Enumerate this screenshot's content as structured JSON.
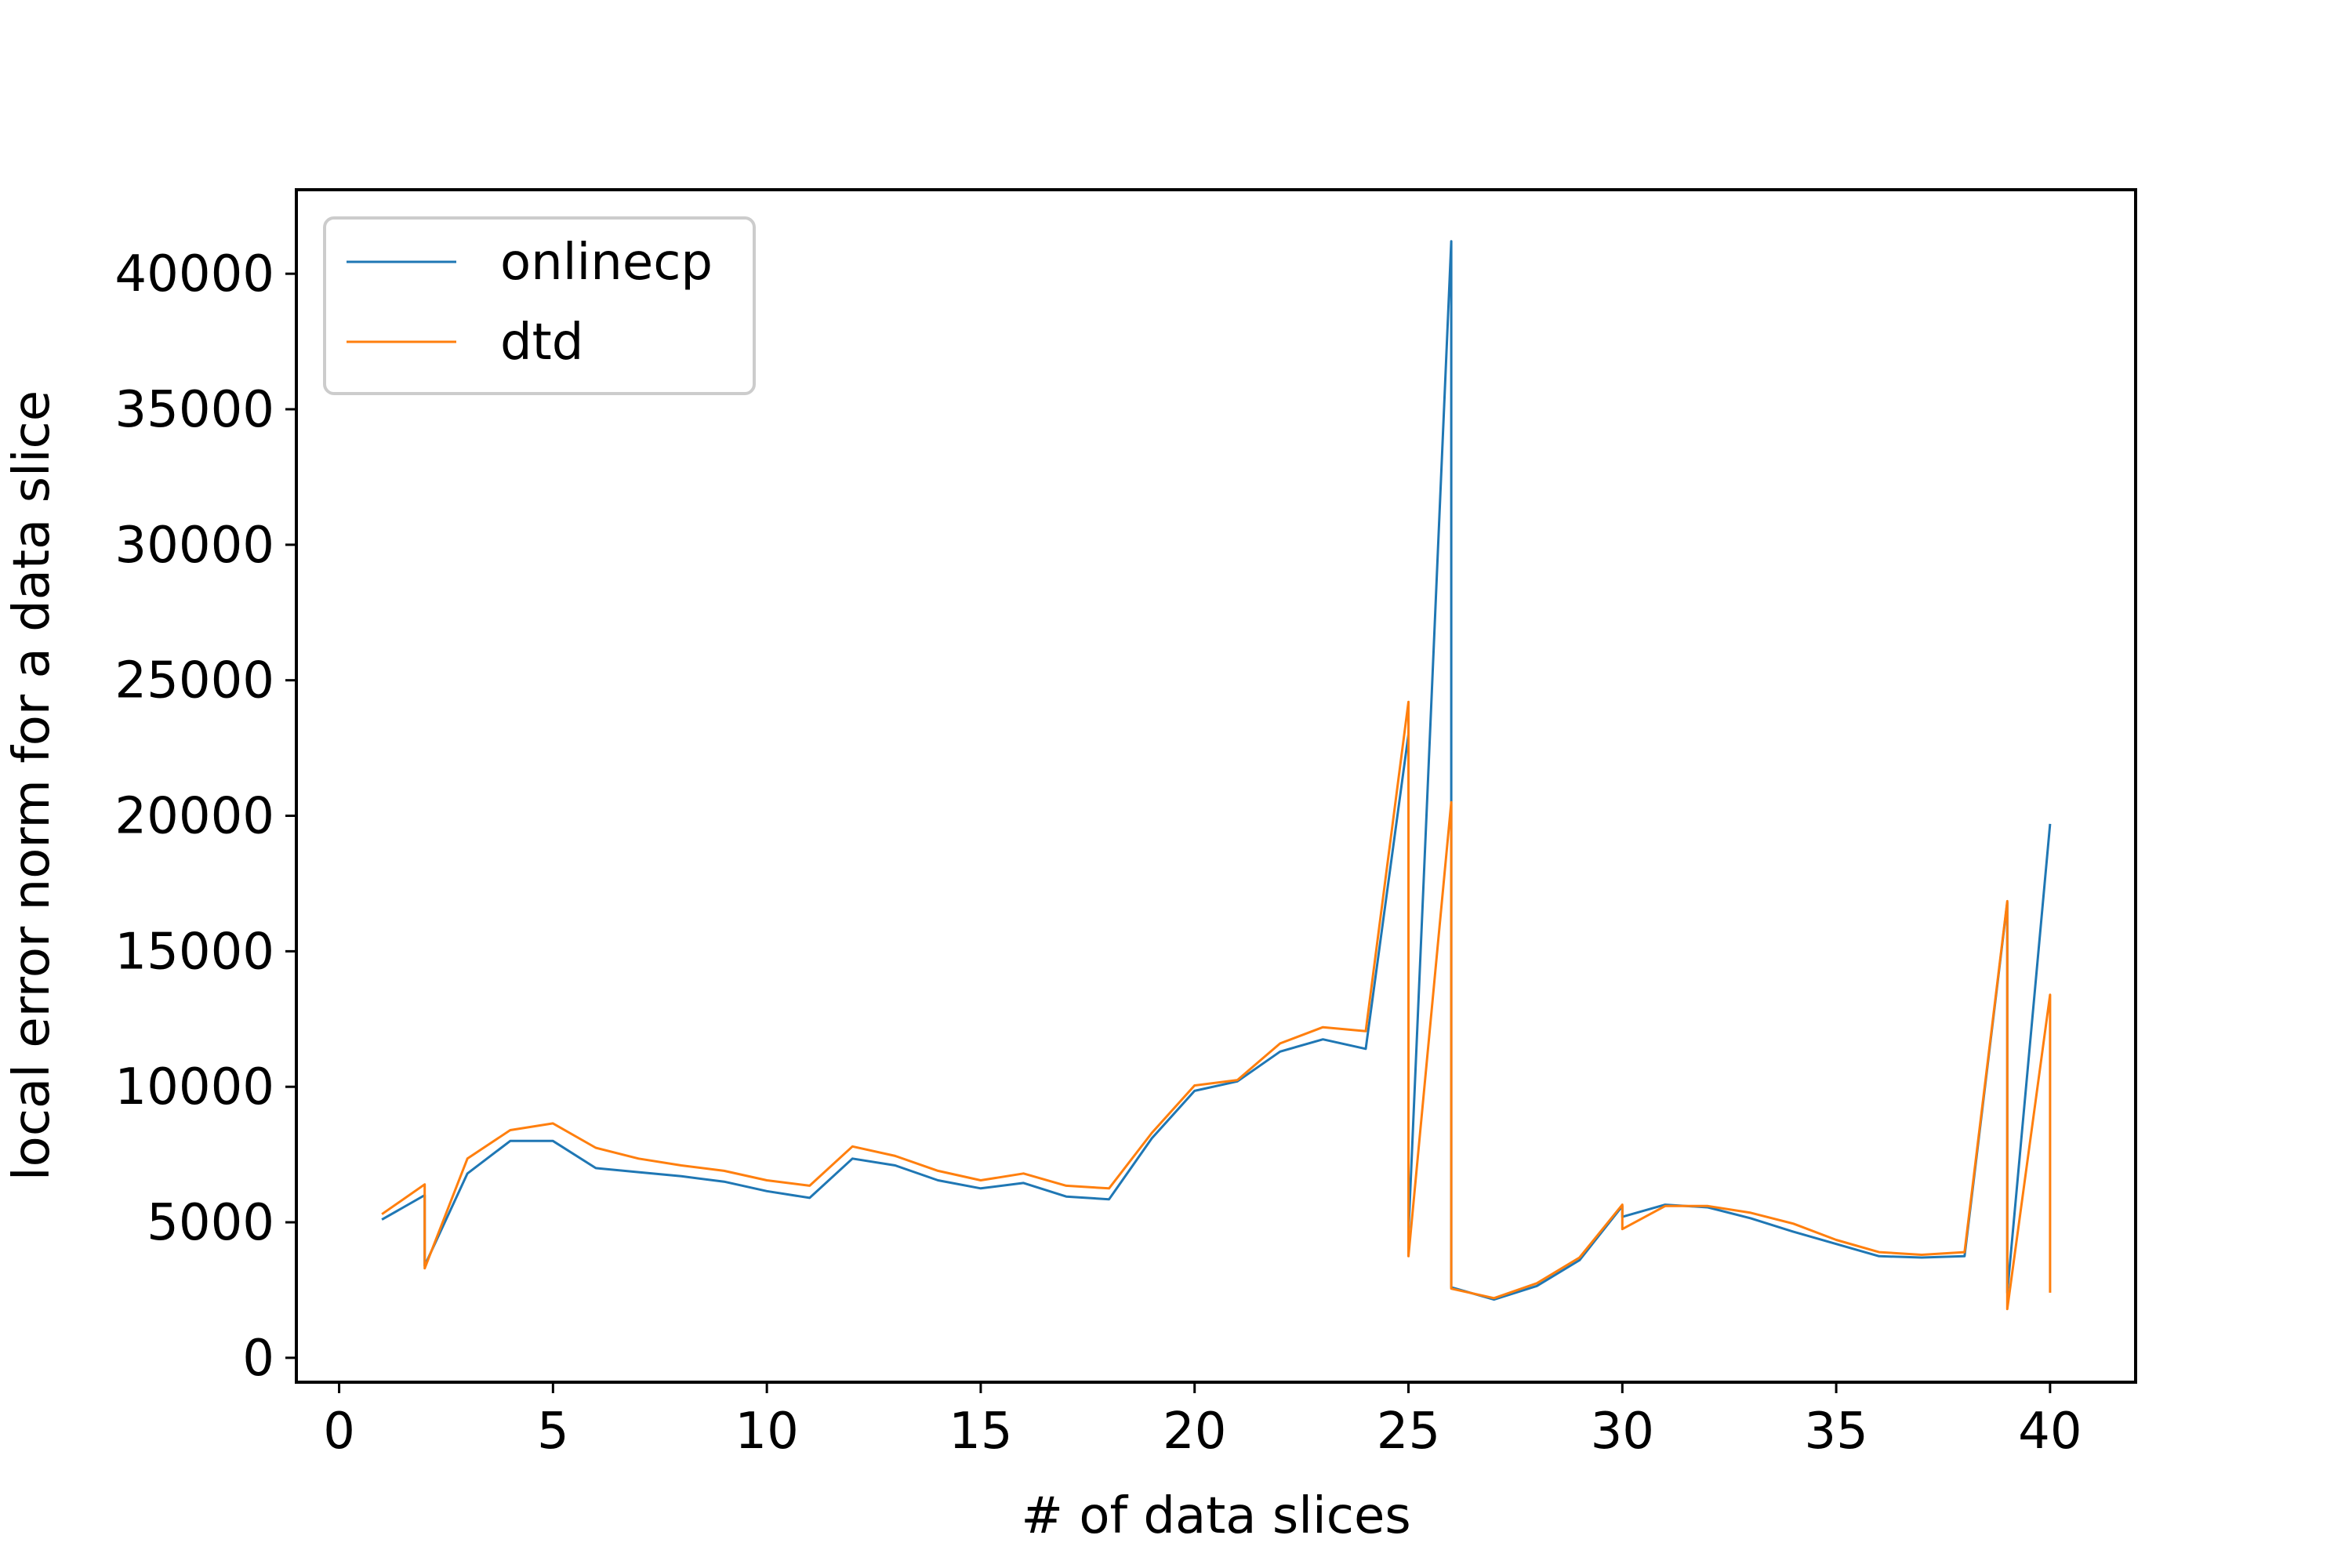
{
  "chart_data": {
    "type": "line",
    "title": "",
    "xlabel": "# of data slices",
    "ylabel": "local error norm for a data slice",
    "xlim": [
      -1,
      42
    ],
    "ylim": [
      -900,
      43100
    ],
    "xticks": [
      0,
      5,
      10,
      15,
      20,
      25,
      30,
      35,
      40
    ],
    "yticks": [
      0,
      5000,
      10000,
      15000,
      20000,
      25000,
      30000,
      35000,
      40000
    ],
    "legend_position": "top-left",
    "grid": false,
    "series": [
      {
        "name": "onlinecp",
        "color": "#1f77b4",
        "points": [
          [
            1,
            5100
          ],
          [
            2,
            6000
          ],
          [
            2,
            3400
          ],
          [
            3,
            6800
          ],
          [
            4,
            8000
          ],
          [
            5,
            8000
          ],
          [
            6,
            7000
          ],
          [
            7,
            6850
          ],
          [
            8,
            6700
          ],
          [
            9,
            6500
          ],
          [
            10,
            6150
          ],
          [
            11,
            5900
          ],
          [
            12,
            7350
          ],
          [
            13,
            7100
          ],
          [
            14,
            6550
          ],
          [
            15,
            6250
          ],
          [
            16,
            6450
          ],
          [
            17,
            5950
          ],
          [
            18,
            5850
          ],
          [
            19,
            8100
          ],
          [
            20,
            9850
          ],
          [
            21,
            10200
          ],
          [
            22,
            11300
          ],
          [
            23,
            11750
          ],
          [
            24,
            11400
          ],
          [
            25,
            23000
          ],
          [
            25,
            4600
          ],
          [
            26,
            41200
          ],
          [
            26,
            2600
          ],
          [
            27,
            2150
          ],
          [
            28,
            2650
          ],
          [
            29,
            3600
          ],
          [
            30,
            5600
          ],
          [
            30,
            5200
          ],
          [
            31,
            5650
          ],
          [
            32,
            5550
          ],
          [
            33,
            5150
          ],
          [
            34,
            4650
          ],
          [
            35,
            4200
          ],
          [
            36,
            3750
          ],
          [
            37,
            3700
          ],
          [
            38,
            3750
          ],
          [
            39,
            16800
          ],
          [
            39,
            2400
          ],
          [
            40,
            19700
          ]
        ]
      },
      {
        "name": "dtd",
        "color": "#ff7f0e",
        "points": [
          [
            1,
            5300
          ],
          [
            2,
            6400
          ],
          [
            2,
            3300
          ],
          [
            3,
            7350
          ],
          [
            4,
            8400
          ],
          [
            5,
            8650
          ],
          [
            6,
            7750
          ],
          [
            7,
            7350
          ],
          [
            8,
            7100
          ],
          [
            9,
            6900
          ],
          [
            10,
            6550
          ],
          [
            11,
            6350
          ],
          [
            12,
            7800
          ],
          [
            13,
            7450
          ],
          [
            14,
            6900
          ],
          [
            15,
            6550
          ],
          [
            16,
            6800
          ],
          [
            17,
            6350
          ],
          [
            18,
            6250
          ],
          [
            19,
            8300
          ],
          [
            20,
            10050
          ],
          [
            21,
            10250
          ],
          [
            22,
            11600
          ],
          [
            23,
            12200
          ],
          [
            24,
            12050
          ],
          [
            25,
            24200
          ],
          [
            25,
            3750
          ],
          [
            26,
            20500
          ],
          [
            26,
            2550
          ],
          [
            27,
            2200
          ],
          [
            28,
            2750
          ],
          [
            29,
            3700
          ],
          [
            30,
            5650
          ],
          [
            30,
            4750
          ],
          [
            31,
            5600
          ],
          [
            32,
            5600
          ],
          [
            33,
            5350
          ],
          [
            34,
            4950
          ],
          [
            35,
            4350
          ],
          [
            36,
            3900
          ],
          [
            37,
            3800
          ],
          [
            38,
            3900
          ],
          [
            39,
            16850
          ],
          [
            39,
            1800
          ],
          [
            40,
            13400
          ],
          [
            40,
            2400
          ]
        ]
      }
    ]
  }
}
